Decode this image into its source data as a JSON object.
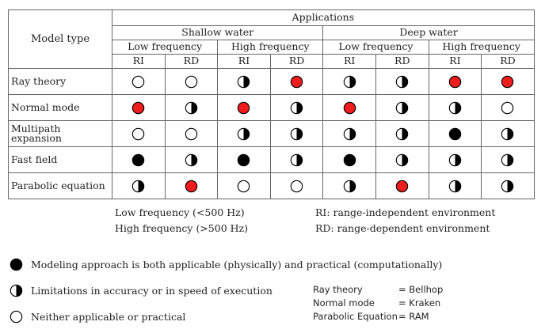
{
  "table": {
    "model_type_label": "Model type",
    "applications_label": "Applications",
    "water_groups": [
      "Shallow water",
      "Deep water"
    ],
    "freq_groups": [
      "Low frequency",
      "High frequency",
      "Low frequency",
      "High frequency"
    ],
    "env_columns": [
      "RI",
      "RD",
      "RI",
      "RD",
      "RI",
      "RD",
      "RI",
      "RD"
    ],
    "rows": [
      {
        "label": "Ray theory",
        "cells": [
          "empty",
          "empty",
          "half",
          "red",
          "half",
          "half",
          "red",
          "red"
        ]
      },
      {
        "label": "Normal mode",
        "cells": [
          "red",
          "half",
          "red",
          "half",
          "red",
          "half",
          "half",
          "empty"
        ]
      },
      {
        "label": "Multipath expansion",
        "cells": [
          "empty",
          "empty",
          "half",
          "half",
          "half",
          "half",
          "full",
          "half"
        ]
      },
      {
        "label": "Fast field",
        "cells": [
          "full",
          "half",
          "full",
          "half",
          "full",
          "half",
          "half",
          "half"
        ]
      },
      {
        "label": "Parabolic equation",
        "cells": [
          "half",
          "red",
          "empty",
          "empty",
          "half",
          "red",
          "half",
          "half"
        ]
      }
    ]
  },
  "abbreviations": {
    "low_freq": "Low frequency (<500 Hz)",
    "high_freq": "High frequency (>500 Hz)",
    "ri": "RI: range-independent environment",
    "rd": "RD: range-dependent environment"
  },
  "legend": [
    {
      "symbol": "full",
      "text": "Modeling approach is both applicable (physically) and practical (computationally)"
    },
    {
      "symbol": "half",
      "text": "Limitations in accuracy or in speed of execution"
    },
    {
      "symbol": "empty",
      "text": "Neither applicable or practical"
    }
  ],
  "mapping": [
    {
      "model": "Ray theory",
      "value": "= Bellhop"
    },
    {
      "model": "Normal mode",
      "value": "= Kraken"
    },
    {
      "model": "Parabolic Equation",
      "value": "= RAM"
    }
  ],
  "colors": {
    "red": "#ee1c1c",
    "full": "#000000",
    "border": "#666666"
  }
}
